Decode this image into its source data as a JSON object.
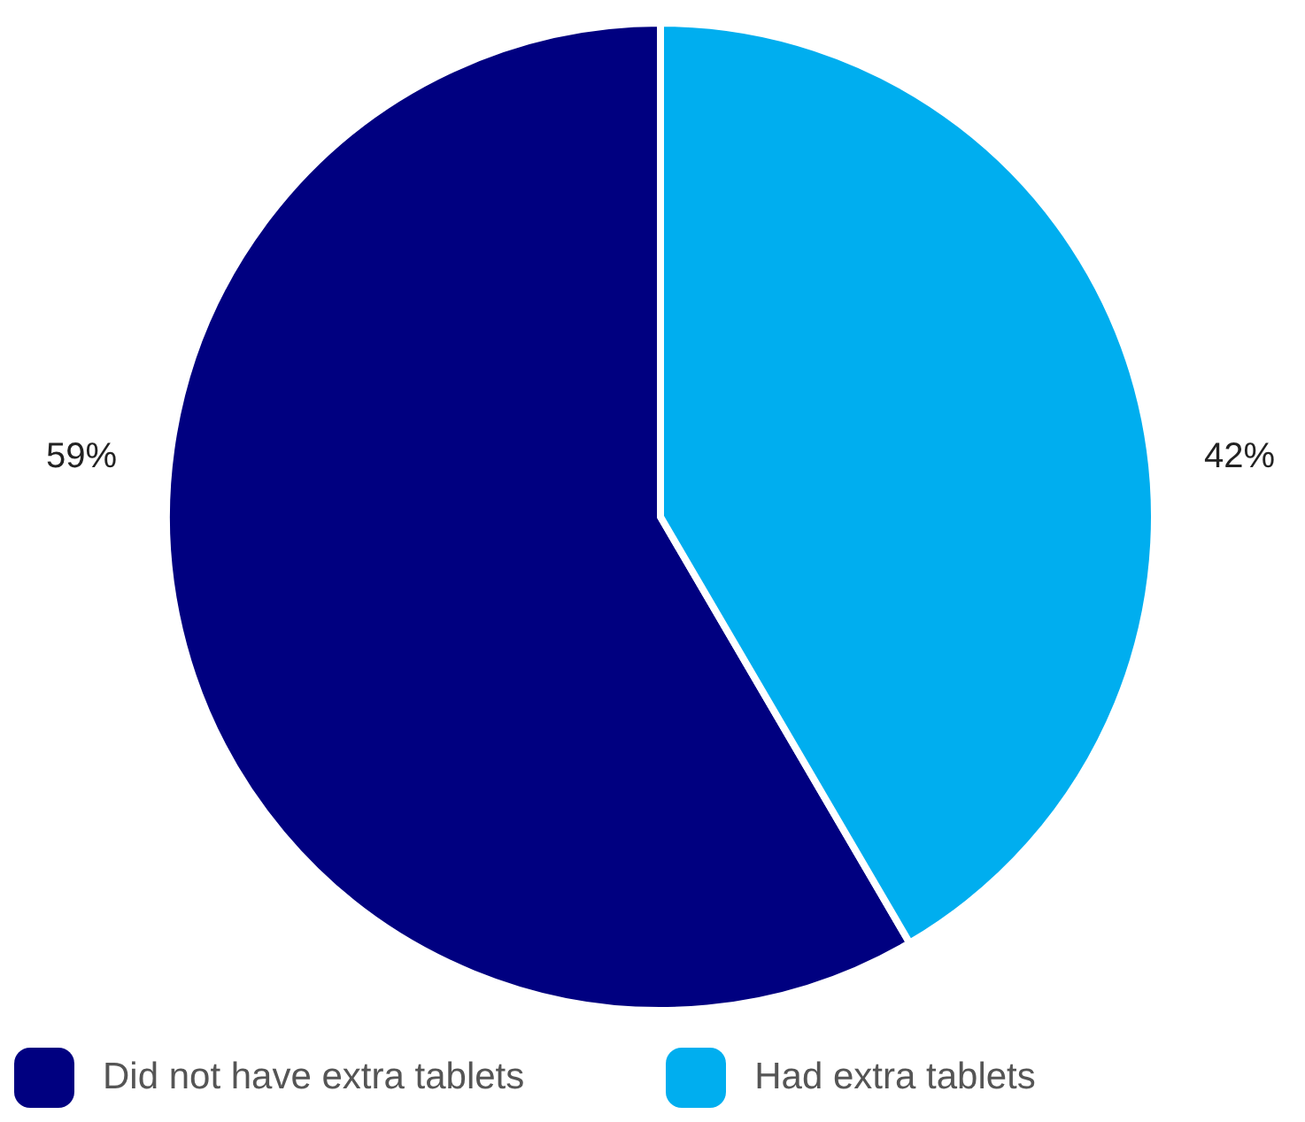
{
  "chart_data": {
    "type": "pie",
    "categories": [
      "Did not have extra tablets",
      "Had extra tablets"
    ],
    "values": [
      59,
      42
    ],
    "colors": [
      "#000080",
      "#00aeef"
    ],
    "value_labels": [
      "59%",
      "42%"
    ],
    "legend": "bottom"
  }
}
